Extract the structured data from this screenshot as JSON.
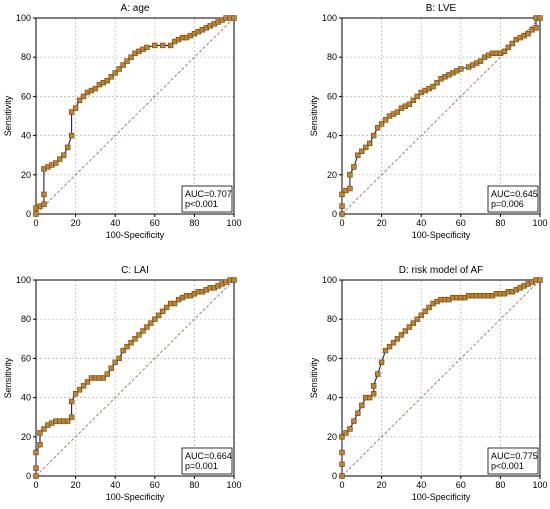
{
  "colors": {
    "curve": "#1c1c6e",
    "marker_fill": "#c77f2a",
    "marker_edge": "#5a4a10",
    "grid": "#b4b4b4",
    "diagonal": "#9a6050",
    "axis": "#000000"
  },
  "chart_data": [
    {
      "type": "line",
      "title": "A: age",
      "xlabel": "100-Specificity",
      "ylabel": "Sensitivity",
      "xlim": [
        0,
        100
      ],
      "ylim": [
        0,
        100
      ],
      "xticks": [
        "0",
        "20",
        "40",
        "60",
        "80",
        "100"
      ],
      "yticks": [
        "0",
        "20",
        "40",
        "60",
        "80",
        "100"
      ],
      "grid": true,
      "diagonal": true,
      "annotation": [
        "AUC=0.707",
        "p<0.001"
      ],
      "series": [
        {
          "x": [
            0,
            0,
            2,
            4,
            4,
            4,
            6,
            8,
            10,
            12,
            14,
            16,
            18,
            18,
            20,
            22,
            24,
            26,
            28,
            30,
            32,
            34,
            36,
            38,
            40,
            42,
            44,
            46,
            48,
            50,
            52,
            54,
            56,
            60,
            64,
            68,
            70,
            72,
            74,
            76,
            78,
            80,
            82,
            84,
            86,
            88,
            90,
            92,
            94,
            96,
            98,
            100
          ],
          "y": [
            0,
            3,
            4,
            5,
            10,
            23,
            24,
            25,
            26,
            28,
            30,
            34,
            40,
            52,
            54,
            58,
            60,
            62,
            63,
            64,
            66,
            67,
            68,
            70,
            72,
            74,
            76,
            78,
            80,
            82,
            83,
            84,
            85,
            86,
            86,
            86,
            88,
            89,
            90,
            90,
            91,
            92,
            93,
            94,
            95,
            96,
            97,
            98,
            99,
            100,
            100,
            100
          ]
        }
      ]
    },
    {
      "type": "line",
      "title": "B: LVE",
      "xlabel": "100-Specificity",
      "ylabel": "Sensitivity",
      "xlim": [
        0,
        100
      ],
      "ylim": [
        0,
        100
      ],
      "xticks": [
        "0",
        "20",
        "40",
        "60",
        "80",
        "100"
      ],
      "yticks": [
        "0",
        "20",
        "40",
        "60",
        "80",
        "100"
      ],
      "grid": true,
      "diagonal": true,
      "annotation": [
        "AUC=0.645",
        "p=0.006"
      ],
      "series": [
        {
          "x": [
            0,
            0,
            0,
            2,
            4,
            4,
            6,
            8,
            10,
            12,
            14,
            16,
            18,
            20,
            22,
            24,
            26,
            28,
            30,
            32,
            34,
            36,
            38,
            40,
            42,
            44,
            46,
            48,
            50,
            52,
            54,
            56,
            58,
            60,
            64,
            66,
            68,
            70,
            72,
            74,
            76,
            78,
            80,
            82,
            84,
            86,
            88,
            90,
            92,
            94,
            96,
            98,
            98,
            100
          ],
          "y": [
            0,
            4,
            10,
            12,
            13,
            20,
            24,
            30,
            32,
            34,
            36,
            40,
            44,
            46,
            48,
            50,
            51,
            52,
            54,
            55,
            56,
            58,
            60,
            62,
            63,
            64,
            65,
            67,
            69,
            70,
            71,
            72,
            73,
            74,
            75,
            76,
            77,
            78,
            80,
            81,
            82,
            82,
            82,
            83,
            85,
            87,
            89,
            90,
            91,
            92,
            94,
            95,
            100,
            100
          ]
        }
      ]
    },
    {
      "type": "line",
      "title": "C: LAI",
      "xlabel": "100-Specificity",
      "ylabel": "Sensitivity",
      "xlim": [
        0,
        100
      ],
      "ylim": [
        0,
        100
      ],
      "xticks": [
        "0",
        "20",
        "40",
        "60",
        "80",
        "100"
      ],
      "yticks": [
        "0",
        "20",
        "40",
        "60",
        "80",
        "100"
      ],
      "grid": true,
      "diagonal": true,
      "annotation": [
        "AUC=0.664",
        "p=0.001"
      ],
      "series": [
        {
          "x": [
            0,
            0,
            0,
            2,
            2,
            4,
            6,
            8,
            10,
            12,
            14,
            16,
            18,
            18,
            20,
            22,
            24,
            26,
            28,
            30,
            32,
            34,
            36,
            38,
            40,
            42,
            44,
            46,
            48,
            50,
            52,
            54,
            56,
            58,
            60,
            62,
            64,
            66,
            68,
            70,
            72,
            74,
            76,
            78,
            80,
            82,
            84,
            86,
            88,
            90,
            92,
            94,
            96,
            98,
            100
          ],
          "y": [
            0,
            4,
            12,
            16,
            22,
            24,
            26,
            27,
            28,
            28,
            28,
            28,
            30,
            38,
            42,
            44,
            46,
            48,
            50,
            50,
            50,
            50,
            52,
            55,
            58,
            60,
            64,
            66,
            68,
            70,
            72,
            74,
            76,
            78,
            80,
            82,
            84,
            86,
            88,
            88,
            90,
            91,
            92,
            92,
            93,
            94,
            94,
            95,
            96,
            96,
            97,
            98,
            99,
            100,
            100
          ]
        }
      ]
    },
    {
      "type": "line",
      "title": "D: risk model of AF",
      "xlabel": "100-Specificity",
      "ylabel": "Sensitivity",
      "xlim": [
        0,
        100
      ],
      "ylim": [
        0,
        100
      ],
      "xticks": [
        "0",
        "20",
        "40",
        "60",
        "80",
        "100"
      ],
      "yticks": [
        "0",
        "20",
        "40",
        "60",
        "80",
        "100"
      ],
      "grid": true,
      "diagonal": true,
      "annotation": [
        "AUC=0.775",
        "p<0.001"
      ],
      "series": [
        {
          "x": [
            0,
            0,
            0,
            0,
            2,
            4,
            6,
            8,
            10,
            12,
            14,
            16,
            16,
            18,
            20,
            22,
            24,
            26,
            28,
            30,
            32,
            34,
            36,
            38,
            40,
            42,
            44,
            46,
            48,
            50,
            52,
            54,
            56,
            58,
            60,
            62,
            64,
            66,
            68,
            70,
            72,
            74,
            76,
            78,
            80,
            82,
            84,
            86,
            88,
            90,
            92,
            94,
            96,
            98,
            100
          ],
          "y": [
            0,
            6,
            12,
            20,
            22,
            24,
            28,
            32,
            36,
            40,
            40,
            42,
            46,
            52,
            58,
            64,
            66,
            68,
            70,
            72,
            74,
            76,
            78,
            80,
            82,
            84,
            86,
            88,
            89,
            90,
            90,
            90,
            91,
            91,
            91,
            91,
            92,
            92,
            92,
            92,
            92,
            92,
            92,
            93,
            93,
            93,
            94,
            94,
            95,
            96,
            97,
            98,
            99,
            100,
            100
          ]
        }
      ]
    }
  ]
}
